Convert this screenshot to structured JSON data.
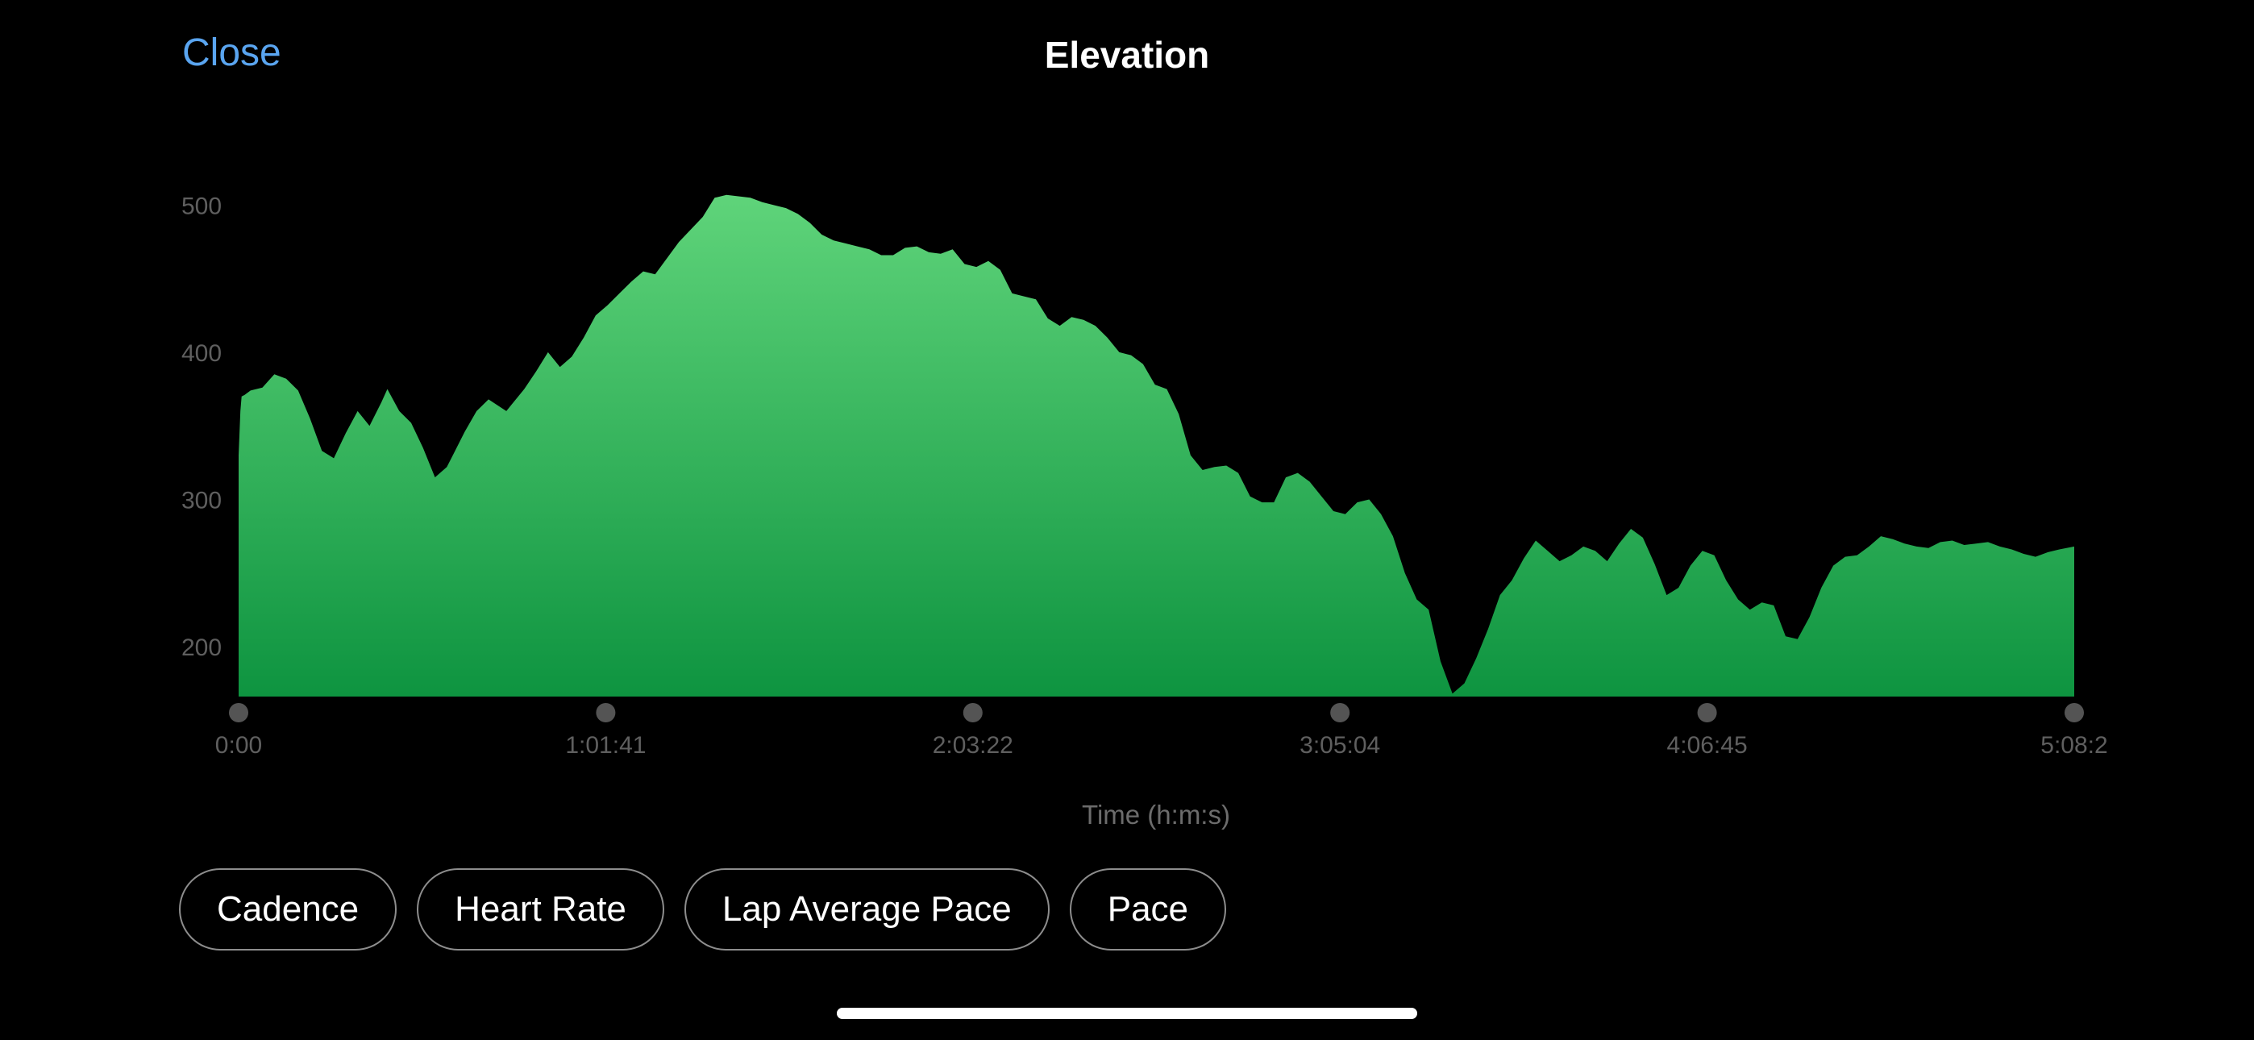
{
  "header": {
    "close_label": "Close",
    "title": "Elevation"
  },
  "chips": [
    {
      "label": "Cadence"
    },
    {
      "label": "Heart Rate"
    },
    {
      "label": "Lap Average Pace"
    },
    {
      "label": "Pace"
    }
  ],
  "colors": {
    "accent": "#5aa5f0",
    "fill_top": "#5fd47a",
    "fill_bottom": "#0e9440",
    "chip_border": "#8d8d8d"
  },
  "chart_data": {
    "type": "area",
    "title": "Elevation",
    "xlabel": "Time (h:m:s)",
    "ylabel": "",
    "x_tick_labels": [
      "0:00",
      "1:01:41",
      "2:03:22",
      "3:05:04",
      "4:06:45",
      "5:08:2"
    ],
    "y_ticks": [
      200,
      300,
      400,
      500
    ],
    "ylim": [
      166,
      510
    ],
    "xlim": [
      0,
      308.5
    ],
    "grid": false,
    "series": [
      {
        "x": [
          0,
          0.3,
          0.5,
          1,
          2,
          4,
          6,
          8,
          10,
          12,
          14,
          16,
          18,
          20,
          22,
          24,
          25,
          27,
          29,
          31,
          33,
          35,
          36,
          38,
          40,
          42,
          45,
          48,
          50,
          52,
          54,
          56,
          58,
          60,
          62,
          64,
          66,
          68,
          70,
          74,
          78,
          80,
          82,
          84,
          86,
          88,
          90,
          92,
          94,
          96,
          98,
          100,
          102,
          104,
          106,
          108,
          110,
          112,
          114,
          116,
          118,
          120,
          122,
          124,
          126,
          128,
          130,
          132,
          134,
          136,
          138,
          140,
          142,
          144,
          146,
          148,
          150,
          152,
          154,
          156,
          158,
          160,
          162,
          164,
          166,
          168,
          170,
          172,
          174,
          176,
          178,
          180,
          182,
          184,
          186,
          188,
          190,
          192,
          194,
          196,
          198,
          200,
          202,
          204,
          206,
          208,
          210,
          212,
          214,
          216,
          218,
          220,
          222,
          224,
          226,
          228,
          230,
          232,
          234,
          236,
          238,
          240,
          242,
          244,
          246,
          248,
          250,
          252,
          254,
          256,
          258,
          260,
          262,
          264,
          266,
          268,
          270,
          272,
          274,
          276,
          278,
          280,
          282,
          284,
          286,
          288,
          290,
          292,
          294,
          296,
          298,
          300,
          302,
          304,
          306,
          308.5
        ],
        "y": [
          330,
          360,
          370,
          371,
          374,
          376,
          385,
          382,
          374,
          355,
          333,
          328,
          345,
          360,
          350,
          366,
          375,
          360,
          352,
          335,
          315,
          322,
          330,
          346,
          360,
          368,
          360,
          375,
          387,
          400,
          390,
          397,
          410,
          425,
          432,
          440,
          448,
          455,
          453,
          475,
          492,
          505,
          507,
          506,
          505,
          502,
          500,
          498,
          494,
          488,
          480,
          476,
          474,
          472,
          470,
          466,
          466,
          471,
          472,
          468,
          467,
          470,
          460,
          458,
          462,
          456,
          440,
          438,
          436,
          423,
          418,
          424,
          422,
          418,
          410,
          400,
          398,
          392,
          378,
          375,
          358,
          330,
          320,
          322,
          323,
          318,
          302,
          298,
          298,
          315,
          318,
          312,
          302,
          292,
          290,
          298,
          300,
          290,
          275,
          250,
          232,
          225,
          190,
          168,
          175,
          192,
          212,
          235,
          245,
          260,
          272,
          265,
          258,
          262,
          268,
          265,
          258,
          270,
          280,
          274,
          256,
          235,
          240,
          255,
          265,
          262,
          245,
          232,
          225,
          230,
          228,
          207,
          205,
          220,
          240,
          255,
          261,
          262,
          268,
          275,
          273,
          270,
          268,
          267,
          271,
          272,
          269,
          270,
          271,
          268,
          266,
          263,
          261,
          264,
          266,
          268
        ]
      }
    ]
  }
}
